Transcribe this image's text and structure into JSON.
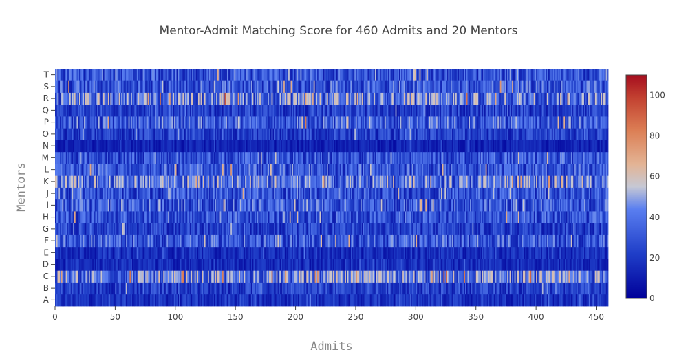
{
  "chart_data": {
    "type": "heatmap",
    "title": "Mentor-Admit Matching Score for 460 Admits and 20 Mentors",
    "xlabel": "Admits",
    "ylabel": "Mentors",
    "x_count": 460,
    "y_categories": [
      "A",
      "B",
      "C",
      "D",
      "E",
      "F",
      "G",
      "H",
      "I",
      "J",
      "K",
      "L",
      "M",
      "N",
      "O",
      "P",
      "Q",
      "R",
      "S",
      "T"
    ],
    "x_ticks": [
      0,
      50,
      100,
      150,
      200,
      250,
      300,
      350,
      400,
      450
    ],
    "x_tick_labels": [
      "0",
      "50",
      "100",
      "150",
      "200",
      "250",
      "300",
      "350",
      "400",
      "450"
    ],
    "xlim": [
      0,
      460
    ],
    "value_range": [
      0,
      110
    ],
    "row_mean_scores": {
      "A": 17,
      "B": 22,
      "C": 38,
      "D": 15,
      "E": 16,
      "F": 30,
      "G": 22,
      "H": 28,
      "I": 30,
      "J": 28,
      "K": 38,
      "L": 30,
      "M": 28,
      "N": 12,
      "O": 22,
      "P": 32,
      "Q": 22,
      "R": 38,
      "S": 30,
      "T": 28
    },
    "colorbar": {
      "ticks": [
        0,
        20,
        40,
        60,
        80,
        100
      ],
      "tick_labels": [
        "0",
        "20",
        "40",
        "60",
        "80",
        "100"
      ],
      "colorscale": [
        [
          0.0,
          "#000099"
        ],
        [
          0.2,
          "#1f3ec8"
        ],
        [
          0.4,
          "#5a7ff0"
        ],
        [
          0.5,
          "#c6c8d4"
        ],
        [
          0.6,
          "#e3b495"
        ],
        [
          0.75,
          "#dc7f55"
        ],
        [
          0.9,
          "#c24030"
        ],
        [
          1.0,
          "#a50d1e"
        ]
      ]
    }
  }
}
